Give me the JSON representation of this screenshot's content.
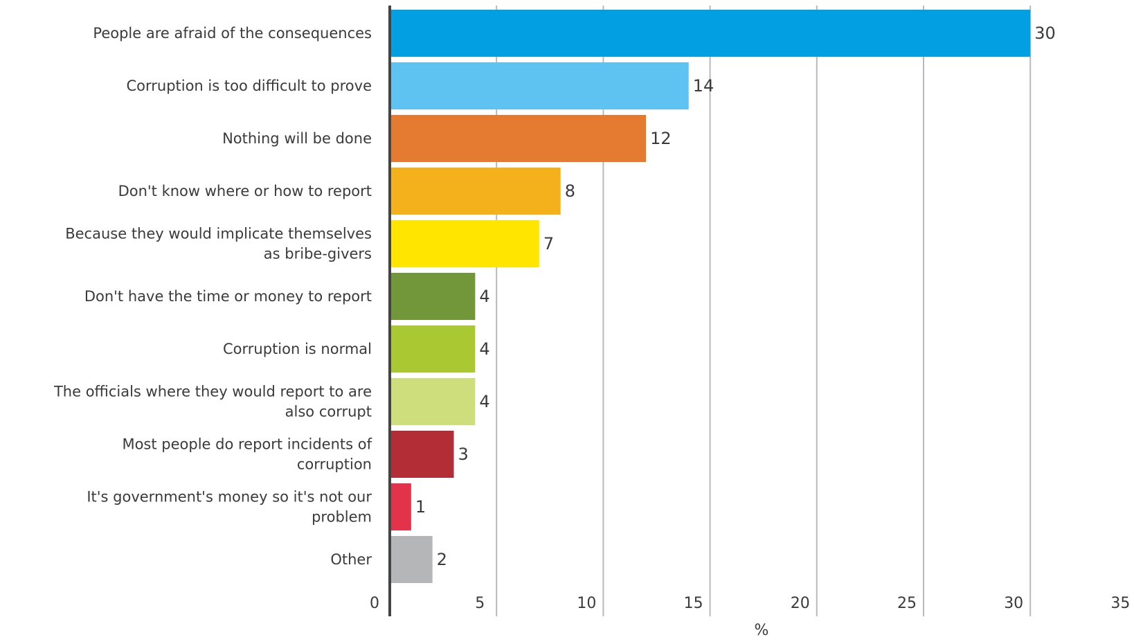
{
  "chart_data": {
    "type": "bar",
    "orientation": "horizontal",
    "categories": [
      [
        "People are afraid of the consequences"
      ],
      [
        "Corruption is too difficult to prove"
      ],
      [
        "Nothing will be done"
      ],
      [
        "Don't know where or how to report"
      ],
      [
        "Because they would implicate themselves",
        "as bribe-givers"
      ],
      [
        "Don't have the time or money to report"
      ],
      [
        "Corruption is normal"
      ],
      [
        "The officials where they would report to are",
        "also corrupt"
      ],
      [
        "Most people do report incidents of",
        "corruption"
      ],
      [
        "It's government's money so it's not our",
        "problem"
      ],
      [
        "Other"
      ]
    ],
    "values": [
      30,
      14,
      12,
      8,
      7,
      4,
      4,
      4,
      3,
      1,
      2
    ],
    "value_labels": [
      "30",
      "14",
      "12",
      "8",
      "7",
      "4",
      "4",
      "4",
      "3",
      "1",
      "2"
    ],
    "colors": [
      "#02a0e3",
      "#5ec3f0",
      "#e57a31",
      "#f5b11c",
      "#ffe500",
      "#72963a",
      "#a9c832",
      "#cfde7d",
      "#b22d36",
      "#e3334a",
      "#b5b6b8"
    ],
    "x_ticks": [
      "0",
      "5",
      "10",
      "15",
      "20",
      "25",
      "30",
      "35"
    ],
    "xlim": [
      0,
      35
    ],
    "xlabel": "%",
    "ylabel": "",
    "title": "",
    "grid": "vertical"
  }
}
